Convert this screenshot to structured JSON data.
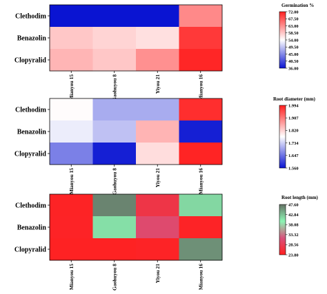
{
  "chart_data": [
    {
      "type": "heatmap",
      "rows": [
        "Clethodim",
        "Benazolin",
        "Clopyralid"
      ],
      "columns": [
        "Mianyou 15",
        "Gaohuyou 8",
        "Yiyou 21",
        "Mianyou 16"
      ],
      "values": [
        [
          36.0,
          36.0,
          36.0,
          63.5
        ],
        [
          58.5,
          57.5,
          56.5,
          70.0
        ],
        [
          60.0,
          58.5,
          63.0,
          71.5
        ]
      ],
      "colorbar": {
        "title": "Germination %",
        "ticks": [
          "72.00",
          "67.50",
          "63.00",
          "58.50",
          "54.00",
          "49.50",
          "45.00",
          "40.50",
          "36.00"
        ],
        "range": [
          36.0,
          72.0
        ],
        "colors": [
          "#0a14d2",
          "#ffffff",
          "#ff2020"
        ]
      }
    },
    {
      "type": "heatmap",
      "rows": [
        "Clethodim",
        "Benazolin",
        "Clopyralid"
      ],
      "columns": [
        "Mianyou 15",
        "Gaohuyou 8",
        "Yiyou 21",
        "Mianyou 16"
      ],
      "values": [
        [
          1.78,
          1.7,
          1.7,
          1.98
        ],
        [
          1.76,
          1.72,
          1.85,
          1.57
        ],
        [
          1.66,
          1.57,
          1.81,
          1.99
        ]
      ],
      "colorbar": {
        "title": "Root diameter (mm)",
        "ticks": [
          "1.994",
          "1.907",
          "1.820",
          "1.734",
          "1.647",
          "1.560"
        ],
        "range": [
          1.56,
          1.994
        ],
        "colors": [
          "#0a14d2",
          "#ffffff",
          "#ff2020"
        ]
      }
    },
    {
      "type": "heatmap",
      "rows": [
        "Clethodim",
        "Benazolin",
        "Clopyralid"
      ],
      "columns": [
        "Mianyou 15",
        "Gaohuyou 8",
        "Yiyou 21",
        "Mianyou 16"
      ],
      "values": [
        [
          24.2,
          46.5,
          27.2,
          41.5
        ],
        [
          24.3,
          41.0,
          30.5,
          24.3
        ],
        [
          24.1,
          24.1,
          24.3,
          45.8
        ]
      ],
      "colorbar": {
        "title": "Root length (mm)",
        "ticks": [
          "47.60",
          "42.84",
          "38.08",
          "33.32",
          "28.56",
          "23.80"
        ],
        "range": [
          23.8,
          47.6
        ],
        "colors": [
          "#ff2020",
          "#d8527c",
          "#8cf5b4",
          "#657265"
        ]
      }
    }
  ]
}
